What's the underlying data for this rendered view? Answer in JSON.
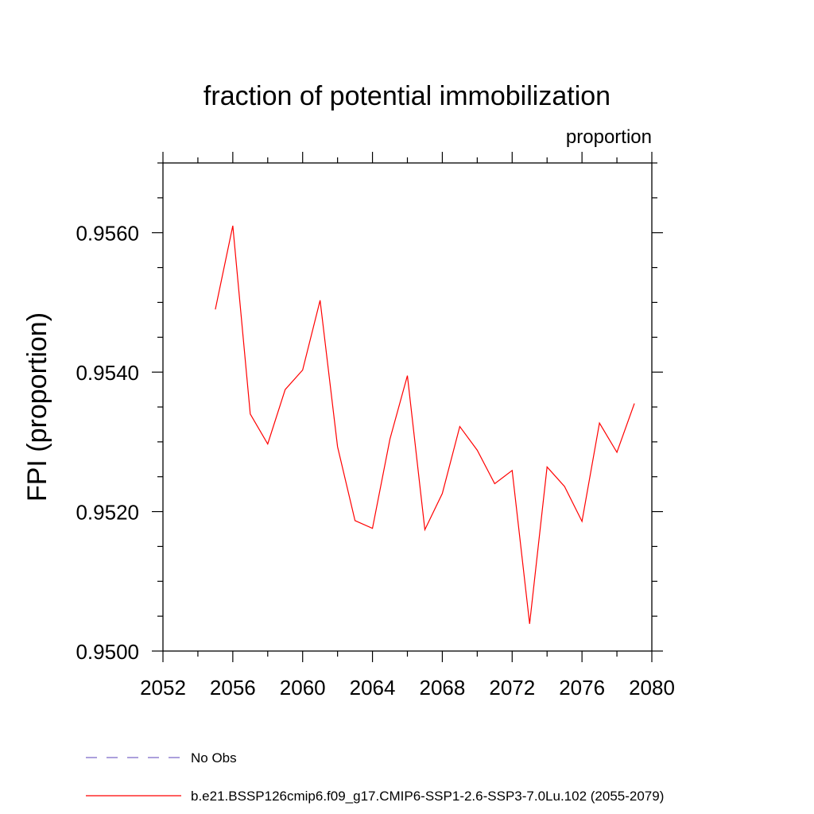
{
  "chart_data": {
    "type": "line",
    "title": "fraction of potential immobilization",
    "subtitle": "proportion",
    "ylabel": "FPI  (proportion)",
    "xlabel": "",
    "xlim": [
      2052,
      2080
    ],
    "ylim": [
      0.95,
      0.957
    ],
    "x_ticks": [
      2052,
      2056,
      2060,
      2064,
      2068,
      2072,
      2076,
      2080
    ],
    "x_tick_labels": [
      "2052",
      "2056",
      "2060",
      "2064",
      "2068",
      "2072",
      "2076",
      "2080"
    ],
    "y_ticks": [
      0.95,
      0.952,
      0.954,
      0.956
    ],
    "y_tick_labels": [
      "0.9500",
      "0.9520",
      "0.9540",
      "0.9560"
    ],
    "grid": false,
    "legend_position": "bottom",
    "series": [
      {
        "name": "b.e21.BSSP126cmip6.f09_g17.CMIP6-SSP1-2.6-SSP3-7.0Lu.102 (2055-2079)",
        "color": "#ff0000",
        "x": [
          2055,
          2056,
          2057,
          2058,
          2059,
          2060,
          2061,
          2062,
          2063,
          2064,
          2065,
          2066,
          2067,
          2068,
          2069,
          2070,
          2071,
          2072,
          2073,
          2074,
          2075,
          2076,
          2077,
          2078,
          2079
        ],
        "y": [
          0.9549,
          0.9561,
          0.9534,
          0.95297,
          0.95375,
          0.95403,
          0.95503,
          0.95293,
          0.95187,
          0.95176,
          0.95304,
          0.95395,
          0.95174,
          0.95226,
          0.95322,
          0.95288,
          0.9524,
          0.95259,
          0.95039,
          0.95264,
          0.95236,
          0.95186,
          0.95327,
          0.95285,
          0.95355
        ]
      }
    ],
    "legend": [
      {
        "label": "No Obs",
        "color": "#7b68c8",
        "dash": true
      },
      {
        "label": "b.e21.BSSP126cmip6.f09_g17.CMIP6-SSP1-2.6-SSP3-7.0Lu.102 (2055-2079)",
        "color": "#ff0000",
        "dash": false
      }
    ]
  }
}
